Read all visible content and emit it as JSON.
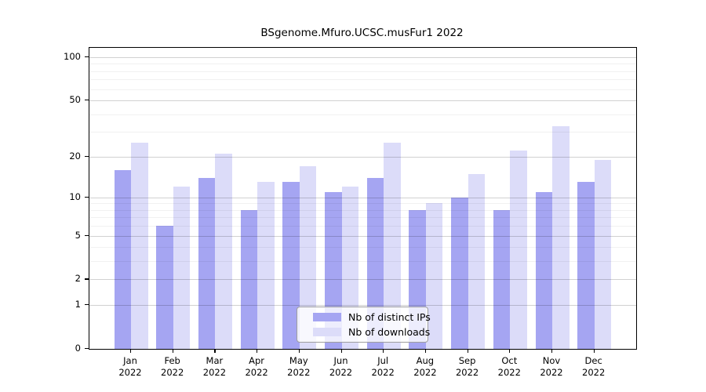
{
  "chart_data": {
    "type": "bar",
    "title": "BSgenome.Mfuro.UCSC.musFur1 2022",
    "categories": [
      "Jan",
      "Feb",
      "Mar",
      "Apr",
      "May",
      "Jun",
      "Jul",
      "Aug",
      "Sep",
      "Oct",
      "Nov",
      "Dec"
    ],
    "year": "2022",
    "series": [
      {
        "name": "Nb of distinct IPs",
        "color": "#a5a5f2",
        "values": [
          16,
          6,
          14,
          8,
          13,
          11,
          14,
          8,
          10,
          8,
          11,
          13
        ]
      },
      {
        "name": "Nb of downloads",
        "color": "#dcdcf9",
        "values": [
          25,
          12,
          21,
          13,
          17,
          12,
          25,
          9,
          15,
          22,
          33,
          19
        ]
      }
    ],
    "y_scale": "log10(1+x)",
    "y_ticks": [
      100,
      50,
      20,
      10,
      5,
      2,
      1,
      0
    ],
    "y_minor_gridlines": [
      3,
      4,
      6,
      7,
      8,
      9,
      30,
      40,
      60,
      70,
      80,
      90
    ],
    "ylim": [
      0,
      116
    ],
    "grid": "on, drawn over bars",
    "legend_position": "inside bottom-center"
  },
  "legend": {
    "items": [
      {
        "label": "Nb of distinct IPs",
        "color": "#a5a5f2"
      },
      {
        "label": "Nb of downloads",
        "color": "#dcdcf9"
      }
    ]
  },
  "colors": {
    "background": "#ffffff",
    "axis": "#000000",
    "major_grid": "rgba(0,0,0,0.18)",
    "minor_grid": "rgba(0,0,0,0.055)"
  }
}
